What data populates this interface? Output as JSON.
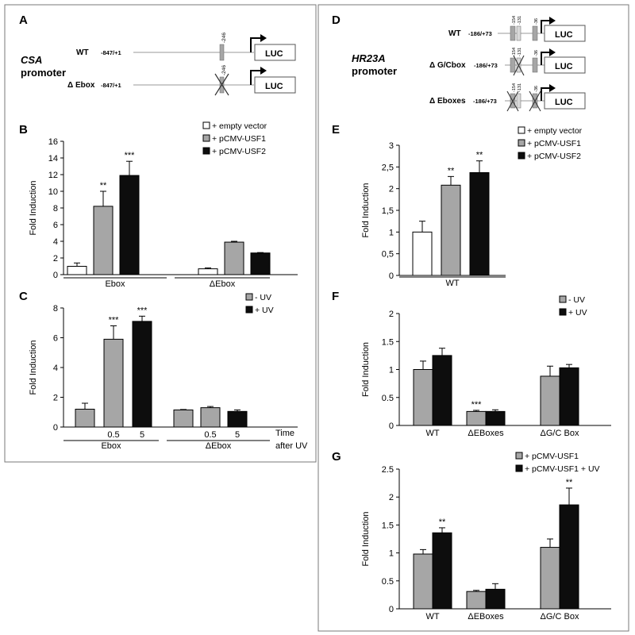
{
  "panel_letters": {
    "A": "A",
    "B": "B",
    "C": "C",
    "D": "D",
    "E": "E",
    "F": "F",
    "G": "G"
  },
  "colors": {
    "white": "#ffffff",
    "gray": "#a6a6a6",
    "black": "#0d0d0d",
    "frame": "#7a7a7a"
  },
  "construct_A": {
    "promoter_name": "CSA",
    "promoter_word": "promoter",
    "rows": [
      {
        "label": "WT",
        "range": "-847/+1",
        "site": "-246",
        "deleted": false,
        "luc": "LUC"
      },
      {
        "label": "Δ Ebox",
        "range": "-847/+1",
        "site": "-246",
        "deleted": true,
        "luc": "LUC"
      }
    ]
  },
  "construct_D": {
    "promoter_name": "HR23A",
    "promoter_word": "promoter",
    "rows": [
      {
        "label": "WT",
        "range": "-186/+73",
        "sites": [
          "-154",
          "-131",
          "-36"
        ],
        "luc": "LUC"
      },
      {
        "label": "Δ G/Cbox",
        "range": "-186/+73",
        "sites": [
          "-154",
          "-131",
          "-36"
        ],
        "luc": "LUC"
      },
      {
        "label": "Δ Eboxes",
        "range": "-186/+73",
        "sites": [
          "-154",
          "-131",
          "-36"
        ],
        "luc": "LUC"
      }
    ]
  },
  "chart_data": [
    {
      "id": "B",
      "type": "bar",
      "ylabel": "Fold Induction",
      "ylim": [
        0,
        16
      ],
      "yticks": [
        "0",
        "2",
        "4",
        "6",
        "8",
        "10",
        "12",
        "14",
        "16"
      ],
      "groups": [
        "Ebox",
        "ΔEbox"
      ],
      "series": [
        {
          "name": "+ empty vector",
          "color": "#ffffff",
          "values": [
            1.0,
            0.7
          ],
          "errors": [
            0.4,
            0.1
          ],
          "sig": [
            "",
            ""
          ]
        },
        {
          "name": "+ pCMV-USF1",
          "color": "#a6a6a6",
          "values": [
            8.2,
            3.9
          ],
          "errors": [
            1.8,
            0.1
          ],
          "sig": [
            "**",
            ""
          ]
        },
        {
          "name": "+ pCMV-USF2",
          "color": "#0d0d0d",
          "values": [
            11.9,
            2.6
          ],
          "errors": [
            1.7,
            0.05
          ],
          "sig": [
            "***",
            ""
          ]
        }
      ],
      "legend": "top-right"
    },
    {
      "id": "C",
      "type": "bar",
      "ylabel": "Fold Induction",
      "ylim": [
        0,
        8
      ],
      "yticks": [
        "0",
        "2",
        "4",
        "6",
        "8"
      ],
      "groups": [
        "Ebox",
        "ΔEbox"
      ],
      "categories": [
        [
          "",
          "0.5",
          "5"
        ],
        [
          "",
          "0.5",
          "5"
        ]
      ],
      "bars": [
        {
          "color": "#a6a6a6",
          "value": 1.2,
          "error": 0.4,
          "sig": ""
        },
        {
          "color": "#a6a6a6",
          "value": 5.9,
          "error": 0.9,
          "sig": "***"
        },
        {
          "color": "#0d0d0d",
          "value": 7.1,
          "error": 0.35,
          "sig": "***"
        },
        {
          "color": "#a6a6a6",
          "value": 1.15,
          "error": 0.03,
          "sig": ""
        },
        {
          "color": "#a6a6a6",
          "value": 1.3,
          "error": 0.08,
          "sig": ""
        },
        {
          "color": "#0d0d0d",
          "value": 1.05,
          "error": 0.1,
          "sig": ""
        }
      ],
      "series": [
        {
          "name": "- UV",
          "color": "#a6a6a6"
        },
        {
          "name": "+ UV",
          "color": "#0d0d0d"
        }
      ],
      "time_label_1": "Time",
      "time_label_2": "after UV",
      "legend": "top-right"
    },
    {
      "id": "E",
      "type": "bar",
      "ylabel": "Fold Induction",
      "ylim": [
        0,
        3
      ],
      "yticks": [
        "0",
        "0,5",
        "1",
        "1,5",
        "2",
        "2,5",
        "3"
      ],
      "groups": [
        "WT"
      ],
      "series": [
        {
          "name": "+ empty vector",
          "color": "#ffffff",
          "values": [
            1.0
          ],
          "errors": [
            0.25
          ],
          "sig": [
            ""
          ]
        },
        {
          "name": "+ pCMV-USF1",
          "color": "#a6a6a6",
          "values": [
            2.08
          ],
          "errors": [
            0.2
          ],
          "sig": [
            "**"
          ]
        },
        {
          "name": "+ pCMV-USF2",
          "color": "#0d0d0d",
          "values": [
            2.37
          ],
          "errors": [
            0.27
          ],
          "sig": [
            "**"
          ]
        }
      ],
      "legend": "top-right"
    },
    {
      "id": "F",
      "type": "bar",
      "ylabel": "Fold Induction",
      "ylim": [
        0,
        2
      ],
      "yticks": [
        "0",
        "0.5",
        "1",
        "1.5",
        "2"
      ],
      "groups": [
        "WT",
        "ΔEBoxes",
        "ΔG/C Box"
      ],
      "series": [
        {
          "name": "- UV",
          "color": "#a6a6a6",
          "values": [
            1.0,
            0.25,
            0.88
          ],
          "errors": [
            0.15,
            0.02,
            0.18
          ],
          "sig": [
            "",
            "***",
            ""
          ]
        },
        {
          "name": "+ UV",
          "color": "#0d0d0d",
          "values": [
            1.25,
            0.25,
            1.03
          ],
          "errors": [
            0.13,
            0.03,
            0.06
          ],
          "sig": [
            "",
            "",
            ""
          ]
        }
      ],
      "legend": "top-right"
    },
    {
      "id": "G",
      "type": "bar",
      "ylabel": "Fold Induction",
      "ylim": [
        0,
        2.5
      ],
      "yticks": [
        "0",
        "0.5",
        "1",
        "1.5",
        "2",
        "2.5"
      ],
      "groups": [
        "WT",
        "ΔEBoxes",
        "ΔG/C Box"
      ],
      "series": [
        {
          "name": "+ pCMV-USF1",
          "color": "#a6a6a6",
          "values": [
            0.98,
            0.31,
            1.1
          ],
          "errors": [
            0.08,
            0.02,
            0.15
          ],
          "sig": [
            "",
            "",
            ""
          ]
        },
        {
          "name": "+ pCMV-USF1 + UV",
          "color": "#0d0d0d",
          "values": [
            1.36,
            0.35,
            1.86
          ],
          "errors": [
            0.09,
            0.1,
            0.3
          ],
          "sig": [
            "**",
            "",
            "**"
          ]
        }
      ],
      "legend": "top-right"
    }
  ]
}
